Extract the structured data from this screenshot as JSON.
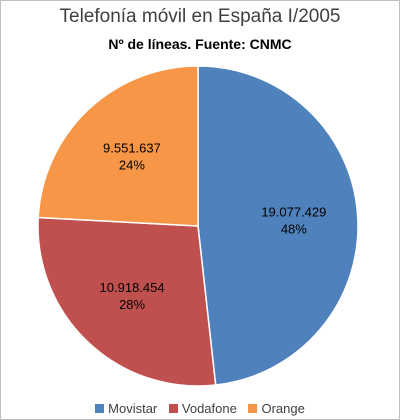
{
  "chart_data": {
    "type": "pie",
    "title": "Telefonía móvil en España I/2005",
    "subtitle": "Nº de líneas. Fuente: CNMC",
    "slices": [
      {
        "name": "Movistar",
        "value": 19077429,
        "value_label": "19.077.429",
        "percent_label": "48%",
        "color": "#4f81bd"
      },
      {
        "name": "Vodafone",
        "value": 10918454,
        "value_label": "10.918.454",
        "percent_label": "28%",
        "color": "#c0504d"
      },
      {
        "name": "Orange",
        "value": 9551637,
        "value_label": "9.551.637",
        "percent_label": "24%",
        "color": "#f79646"
      }
    ],
    "start_angle": "12 o'clock",
    "direction": "clockwise",
    "legend_position": "bottom"
  }
}
